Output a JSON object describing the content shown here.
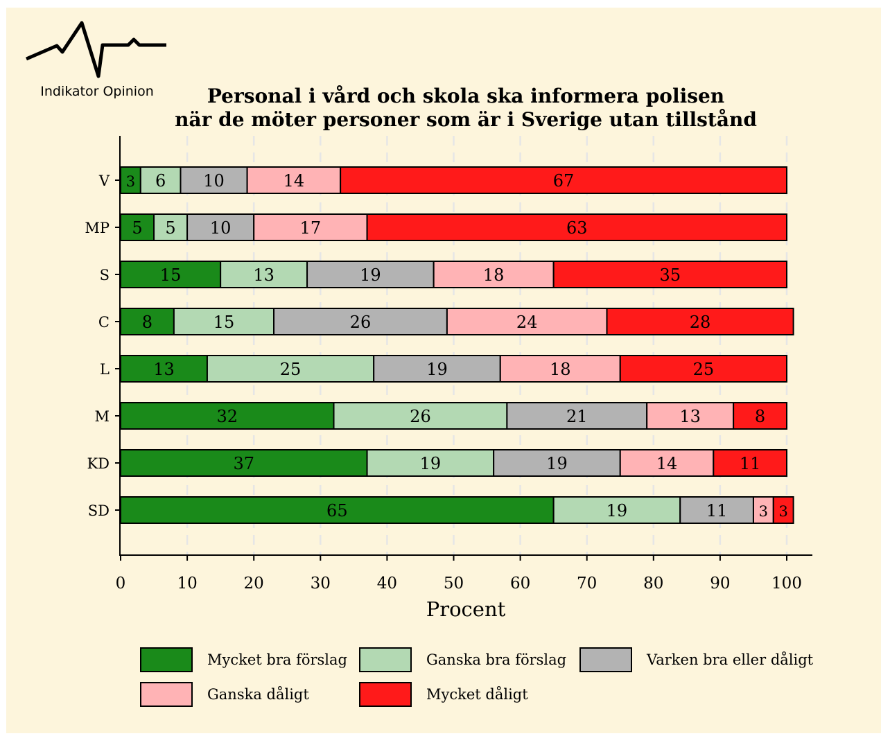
{
  "logo": {
    "name": "Indikator Opinion"
  },
  "chart_data": {
    "type": "bar",
    "orientation": "horizontal",
    "stacked": true,
    "title": [
      "Personal i vård och skola ska informera polisen",
      "när de möter personer som är i Sverige utan tillstånd"
    ],
    "xlabel": "Procent",
    "xlim": [
      0,
      100
    ],
    "xticks": [
      "0",
      "10",
      "20",
      "30",
      "40",
      "50",
      "60",
      "70",
      "80",
      "90",
      "100"
    ],
    "grid": "vertical dashed",
    "categories": [
      "V",
      "MP",
      "S",
      "C",
      "L",
      "M",
      "KD",
      "SD"
    ],
    "series": [
      {
        "name": "Mycket bra förslag",
        "color": "#1a8a1a",
        "values": [
          3,
          5,
          15,
          8,
          13,
          32,
          37,
          65
        ]
      },
      {
        "name": "Ganska bra förslag",
        "color": "#b3d9b3",
        "values": [
          6,
          5,
          13,
          15,
          25,
          26,
          19,
          19
        ]
      },
      {
        "name": "Varken bra eller dåligt",
        "color": "#b3b3b3",
        "values": [
          10,
          10,
          19,
          26,
          19,
          21,
          19,
          11
        ]
      },
      {
        "name": "Ganska dåligt",
        "color": "#ffb3b5",
        "values": [
          14,
          17,
          18,
          24,
          18,
          13,
          14,
          3
        ]
      },
      {
        "name": "Mycket dåligt",
        "color": "#ff1a1a",
        "values": [
          67,
          63,
          35,
          28,
          25,
          8,
          11,
          3
        ]
      }
    ],
    "legend_position": "bottom"
  },
  "colors": {
    "background": "#fdf5dc",
    "page": "#ffffff",
    "grid": "#e6e6e6",
    "outline": "#000000"
  }
}
